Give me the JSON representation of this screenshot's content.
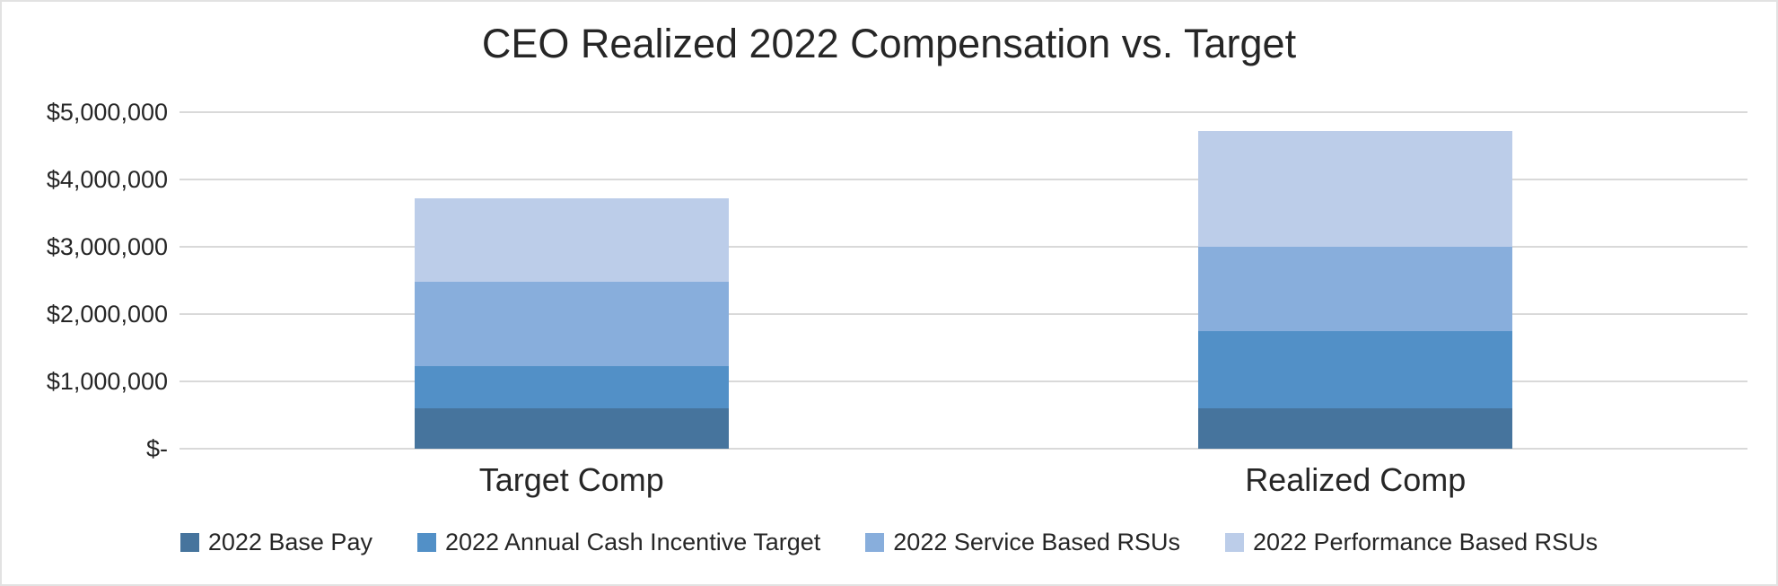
{
  "chart_data": {
    "type": "bar",
    "stacked": true,
    "title": "CEO Realized 2022 Compensation vs. Target",
    "categories": [
      "Target Comp",
      "Realized Comp"
    ],
    "series": [
      {
        "name": "2022 Base Pay",
        "color": "#46749D",
        "values": [
          600000,
          600000
        ]
      },
      {
        "name": "2022 Annual Cash Incentive Target",
        "color": "#5290C7",
        "values": [
          625000,
          1150000
        ]
      },
      {
        "name": "2022 Service Based RSUs",
        "color": "#88AEDC",
        "values": [
          1250000,
          1250000
        ]
      },
      {
        "name": "2022 Performance Based RSUs",
        "color": "#BCCDE9",
        "values": [
          1250000,
          1725000
        ]
      }
    ],
    "stack_totals": [
      3725000,
      4725000
    ],
    "ylim": [
      0,
      5000000
    ],
    "yticks": [
      {
        "label": "$-",
        "value": 0
      },
      {
        "label": "$1,000,000",
        "value": 1000000
      },
      {
        "label": "$2,000,000",
        "value": 2000000
      },
      {
        "label": "$3,000,000",
        "value": 3000000
      },
      {
        "label": "$4,000,000",
        "value": 4000000
      },
      {
        "label": "$5,000,000",
        "value": 5000000
      }
    ],
    "grid": true,
    "legend_position": "bottom",
    "colors": {
      "gridline": "#D9D9D9",
      "text": "#262626",
      "background": "#FFFFFF",
      "frame_border": "#E2E2E2"
    }
  }
}
